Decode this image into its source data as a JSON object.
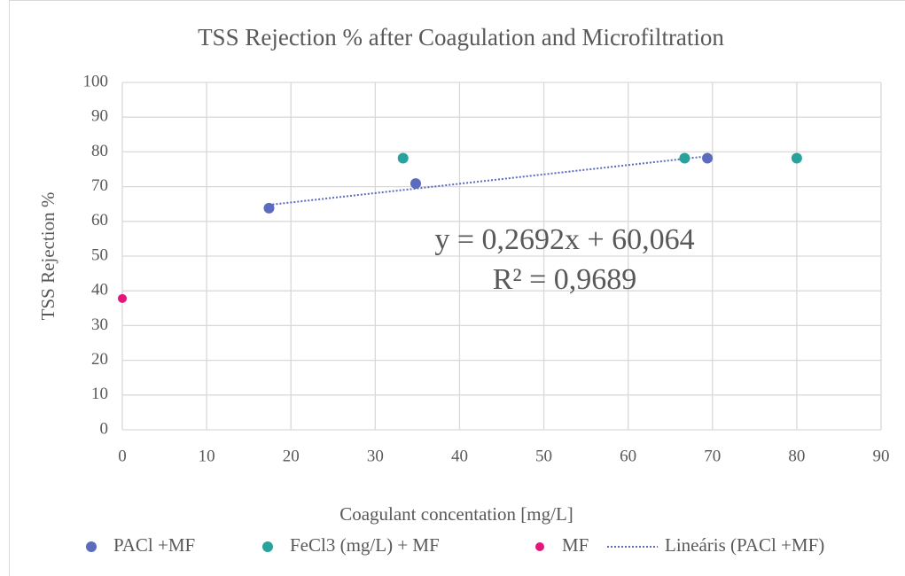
{
  "chart_data": {
    "type": "scatter",
    "title": "TSS Rejection % after Coagulation and Microfiltration",
    "xlabel": "Coagulant concentation [mg/L]",
    "ylabel": "TSS Rejection %",
    "xlim": [
      0,
      90
    ],
    "xticks": [
      0,
      10,
      20,
      30,
      40,
      50,
      60,
      70,
      80,
      90
    ],
    "ylim": [
      0,
      100
    ],
    "yticks": [
      0,
      10,
      20,
      30,
      40,
      50,
      60,
      70,
      80,
      90,
      100
    ],
    "grid": true,
    "legend": "bottom",
    "series": [
      {
        "name": "PACl +MF",
        "color": "#5b6bbd",
        "x": [
          17.4,
          34.8,
          69.4
        ],
        "values": [
          63.8,
          70.9,
          78.2
        ]
      },
      {
        "name": "FeCl3 (mg/L) + MF",
        "color": "#27a29c",
        "x": [
          33.3,
          66.7,
          80
        ],
        "values": [
          78.2,
          78.2,
          78.2
        ]
      },
      {
        "name": "MF",
        "color": "#e2167f",
        "x": [
          0
        ],
        "values": [
          37.8
        ]
      }
    ],
    "trendline": {
      "name": "Lineáris (PACl +MF)",
      "color": "#5b6bbd",
      "slope": 0.2692,
      "intercept": 60.064,
      "equation": "y = 0,2692x + 60,064",
      "r_squared": "R² = 0,9689"
    }
  }
}
